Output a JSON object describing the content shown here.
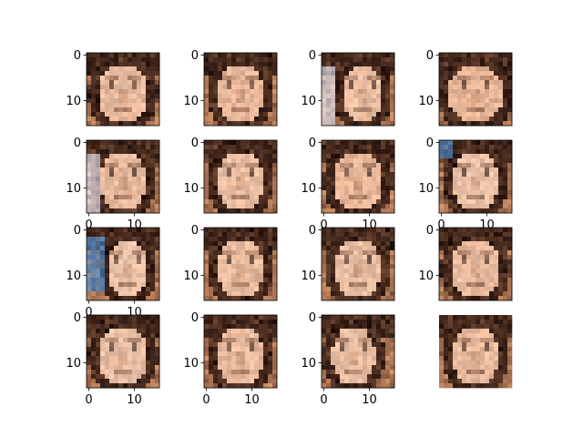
{
  "figure": {
    "background": "#ffffff",
    "palette": [
      "#2a1610",
      "#4a2c1c",
      "#6e4530",
      "#8b5a3c",
      "#a8714f",
      "#c68a63",
      "#d99a72",
      "#e2a885",
      "#ecc2a4",
      "#f0d8c8",
      "#dddbe6",
      "#4a86c4"
    ]
  },
  "chart_data": {
    "type": "heatmap",
    "description_of_cells": "4x4 grid of 16x16 pixelated face images",
    "image_shape": [
      16,
      16
    ],
    "grid": [
      4,
      4
    ],
    "x_ticks": [
      0,
      10
    ],
    "y_ticks": [
      0,
      10
    ],
    "x_tick_labels": [
      "0",
      "10"
    ],
    "y_tick_labels": [
      "0",
      "10"
    ],
    "panels": [
      {
        "row": 0,
        "col": 0,
        "x_ticks_visible": false
      },
      {
        "row": 0,
        "col": 1,
        "x_ticks_visible": false
      },
      {
        "row": 0,
        "col": 2,
        "x_ticks_visible": false
      },
      {
        "row": 0,
        "col": 3,
        "x_ticks_visible": false
      },
      {
        "row": 1,
        "col": 0,
        "x_ticks_visible": true
      },
      {
        "row": 1,
        "col": 1,
        "x_ticks_visible": false
      },
      {
        "row": 1,
        "col": 2,
        "x_ticks_visible": true
      },
      {
        "row": 1,
        "col": 3,
        "x_ticks_visible": true
      },
      {
        "row": 2,
        "col": 0,
        "x_ticks_visible": true
      },
      {
        "row": 2,
        "col": 1,
        "x_ticks_visible": false
      },
      {
        "row": 2,
        "col": 2,
        "x_ticks_visible": false
      },
      {
        "row": 2,
        "col": 3,
        "x_ticks_visible": false
      },
      {
        "row": 3,
        "col": 0,
        "x_ticks_visible": true
      },
      {
        "row": 3,
        "col": 1,
        "x_ticks_visible": true
      },
      {
        "row": 3,
        "col": 2,
        "x_ticks_visible": true
      },
      {
        "row": 3,
        "col": 3,
        "x_ticks_visible": false,
        "y_ticks_visible": false
      }
    ]
  }
}
